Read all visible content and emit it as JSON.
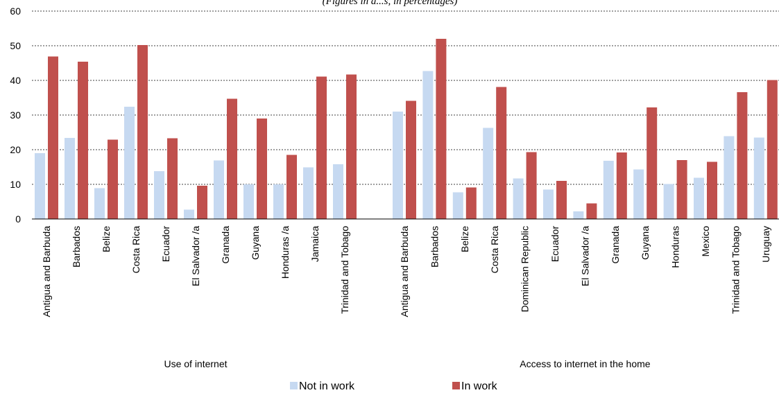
{
  "chart_data": {
    "type": "bar",
    "subtitle": "(Figures in a...s, in percentages)",
    "ylim": [
      0,
      60
    ],
    "yticks": [
      0,
      10,
      20,
      30,
      40,
      50,
      60
    ],
    "grid": true,
    "legend_position": "bottom",
    "colors": {
      "Not in work": "#c6d9f1",
      "In work": "#c0504d"
    },
    "groups": [
      {
        "label": "Use of internet",
        "categories": [
          "Antigua and Barbuda",
          "Barbados",
          "Belize",
          "Costa Rica",
          "Ecuador",
          "El Salvador /a",
          "Granada",
          "Guyana",
          "Honduras /a",
          "Jamaica",
          "Trinidad and Tobago"
        ],
        "series": [
          {
            "name": "Not in work",
            "values": [
              19.0,
              23.4,
              8.9,
              32.4,
              13.8,
              2.7,
              16.9,
              10.0,
              10.0,
              14.9,
              15.8
            ]
          },
          {
            "name": "In work",
            "values": [
              46.9,
              45.4,
              22.9,
              50.2,
              23.3,
              9.6,
              34.7,
              29.0,
              18.5,
              41.1,
              41.7
            ]
          }
        ]
      },
      {
        "label": "Access to internet in the home",
        "categories": [
          "Antigua and Barbuda",
          "Barbados",
          "Belize",
          "Costa Rica",
          "Dominican Republic",
          "Ecuador",
          "El Salvador /a",
          "Granada",
          "Guyana",
          "Honduras",
          "Mexico",
          "Trinidad and Tobago",
          "Uruguay"
        ],
        "series": [
          {
            "name": "Not in work",
            "values": [
              31.0,
              42.7,
              7.7,
              26.3,
              11.7,
              8.5,
              2.2,
              16.8,
              14.3,
              10.1,
              11.9,
              23.9,
              23.5
            ]
          },
          {
            "name": "In work",
            "values": [
              34.1,
              52.0,
              9.1,
              38.1,
              19.3,
              11.0,
              4.5,
              19.2,
              32.2,
              17.0,
              16.5,
              36.6,
              40.1
            ]
          }
        ]
      }
    ]
  }
}
